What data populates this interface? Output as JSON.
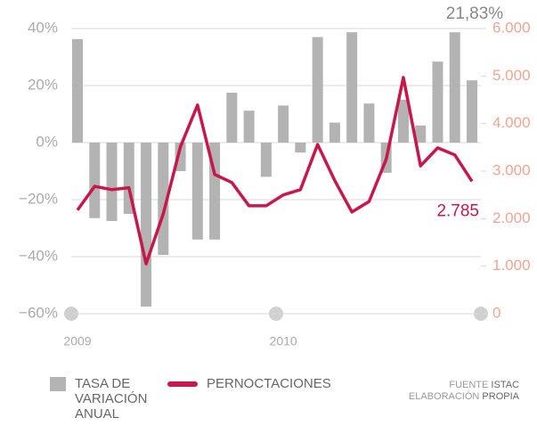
{
  "chart_data": {
    "type": "bar_line",
    "categories": [
      "2009",
      null,
      null,
      null,
      null,
      null,
      null,
      null,
      null,
      null,
      null,
      null,
      "2010",
      null,
      null,
      null,
      null,
      null,
      null,
      null,
      null,
      null,
      null,
      null
    ],
    "series": [
      {
        "name": "TASA DE VARIACIÓN ANUAL",
        "type": "bar",
        "color": "#b3b3b3",
        "values": [
          36.3,
          -26.5,
          -27.5,
          -25,
          -57.5,
          -39.4,
          -10,
          -34,
          -34,
          17.5,
          11.2,
          -12,
          13,
          -3.5,
          37,
          7,
          38.7,
          13.7,
          -10.6,
          15,
          6,
          28.4,
          38.7,
          21.83
        ],
        "value_labels": [
          null,
          null,
          null,
          null,
          null,
          null,
          null,
          null,
          null,
          null,
          null,
          null,
          null,
          null,
          null,
          null,
          null,
          null,
          null,
          null,
          null,
          null,
          null,
          "21,83%"
        ]
      },
      {
        "name": "PERNOCTACIONES",
        "type": "line",
        "axis": "y2",
        "color": "#c8174a",
        "values": [
          2180,
          2680,
          2610,
          2650,
          1050,
          2100,
          3510,
          4390,
          2930,
          2760,
          2270,
          2270,
          2500,
          2610,
          3560,
          2800,
          2140,
          2360,
          3250,
          4970,
          3110,
          3490,
          3340,
          2785
        ],
        "value_labels": [
          null,
          null,
          null,
          null,
          null,
          null,
          null,
          null,
          null,
          null,
          null,
          null,
          null,
          null,
          null,
          null,
          null,
          null,
          null,
          null,
          null,
          null,
          null,
          "2.785"
        ]
      }
    ],
    "ylim": [
      -60,
      40
    ],
    "yticks": [
      {
        "value": -60,
        "label": "−60%"
      },
      {
        "value": -40,
        "label": "−40%"
      },
      {
        "value": -20,
        "label": "−20%"
      },
      {
        "value": 0,
        "label": "0%"
      },
      {
        "value": 20,
        "label": "20%"
      },
      {
        "value": 40,
        "label": "40%"
      }
    ],
    "y2lim": [
      0,
      6000
    ],
    "y2ticks": [
      0,
      {
        "value": 1000,
        "label": "1.000"
      },
      {
        "value": 2000,
        "label": "2.000"
      },
      {
        "value": 3000,
        "label": "3.000"
      },
      {
        "value": 4000,
        "label": "4.000"
      },
      {
        "value": 5000,
        "label": "5.000"
      },
      {
        "value": 6000,
        "label": "6.000"
      }
    ],
    "grid": true,
    "source": {
      "label1": "FUENTE",
      "name1": "ISTAC",
      "label2": "ELABORACIÓN",
      "name2": "PROPIA"
    }
  }
}
